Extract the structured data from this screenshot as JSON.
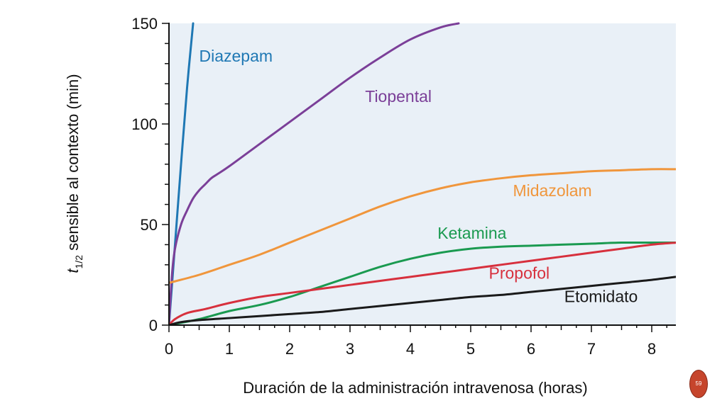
{
  "page": {
    "number": "59"
  },
  "chart_data": {
    "type": "line",
    "title": "",
    "xlabel": "Duración de la administración intravenosa (horas)",
    "ylabel_main": "t",
    "ylabel_sub": "1/2",
    "ylabel_rest": " sensible al contexto (min)",
    "xlim": [
      0,
      8.4
    ],
    "ylim": [
      0,
      150
    ],
    "xticks": [
      "0",
      "1",
      "2",
      "3",
      "4",
      "5",
      "6",
      "7",
      "8"
    ],
    "yticks": [
      "0",
      "50",
      "100",
      "150"
    ],
    "grid": false,
    "plot_background": "#e9f0f7",
    "series": [
      {
        "name": "Diazepam",
        "color": "#1f78b4",
        "x": [
          0,
          0.1,
          0.2,
          0.3,
          0.4
        ],
        "y": [
          0,
          40,
          80,
          118,
          150
        ]
      },
      {
        "name": "Tiopental",
        "color": "#7b3f98",
        "x": [
          0,
          0.05,
          0.1,
          0.2,
          0.3,
          0.4,
          0.5,
          0.6,
          0.7,
          0.8,
          1,
          1.5,
          2,
          2.5,
          3,
          3.5,
          4,
          4.5,
          4.8
        ],
        "y": [
          0,
          25,
          38,
          50,
          57,
          63,
          67,
          70,
          73,
          75,
          79,
          90,
          101,
          112,
          123,
          133,
          142,
          148,
          150
        ]
      },
      {
        "name": "Midazolam",
        "color": "#f0963c",
        "x": [
          0,
          0.5,
          1,
          1.5,
          2,
          2.5,
          3,
          3.5,
          4,
          4.5,
          5,
          5.5,
          6,
          6.5,
          7,
          7.5,
          8,
          8.4
        ],
        "y": [
          21,
          25,
          30,
          35,
          41,
          47,
          53,
          59,
          64,
          68,
          71,
          73,
          74.5,
          75.5,
          76.5,
          77,
          77.5,
          77.5
        ]
      },
      {
        "name": "Ketamina",
        "color": "#1a9a50",
        "x": [
          0,
          0.5,
          1,
          1.5,
          2,
          2.5,
          3,
          3.5,
          4,
          4.5,
          5,
          5.5,
          6,
          6.5,
          7,
          7.5,
          8,
          8.4
        ],
        "y": [
          0,
          3,
          7,
          10,
          14,
          19,
          24,
          29,
          33,
          36,
          38,
          39,
          39.5,
          40,
          40.5,
          41,
          41,
          41
        ]
      },
      {
        "name": "Propofol",
        "color": "#d7303d",
        "x": [
          0,
          0.1,
          0.3,
          0.6,
          1,
          1.5,
          2,
          2.5,
          3,
          3.5,
          4,
          4.5,
          5,
          5.5,
          6,
          6.5,
          7,
          7.5,
          8,
          8.4
        ],
        "y": [
          0,
          3,
          6,
          8,
          11,
          14,
          16,
          18,
          20,
          22,
          24,
          26,
          28,
          30,
          32,
          34,
          36,
          38,
          40,
          41
        ]
      },
      {
        "name": "Etomidato",
        "color": "#1a1a1a",
        "x": [
          0,
          0.2,
          0.5,
          1,
          1.5,
          2,
          2.5,
          3,
          3.5,
          4,
          4.5,
          5,
          5.5,
          6,
          6.5,
          7,
          7.5,
          8,
          8.4
        ],
        "y": [
          0,
          1.5,
          2.5,
          3.5,
          4.5,
          5.5,
          6.5,
          8,
          9.5,
          11,
          12.5,
          14,
          15,
          16.5,
          18,
          19.5,
          21,
          22.5,
          24
        ]
      }
    ],
    "annotations": [
      {
        "series": "Diazepam",
        "text": "Diazepam",
        "x": 0.5,
        "y": 131
      },
      {
        "series": "Tiopental",
        "text": "Tiopental",
        "x": 3.25,
        "y": 111
      },
      {
        "series": "Midazolam",
        "text": "Midazolam",
        "x": 5.7,
        "y": 64
      },
      {
        "series": "Ketamina",
        "text": "Ketamina",
        "x": 4.45,
        "y": 43
      },
      {
        "series": "Propofol",
        "text": "Propofol",
        "x": 5.3,
        "y": 23
      },
      {
        "series": "Etomidato",
        "text": "Etomidato",
        "x": 6.55,
        "y": 11.5
      }
    ]
  }
}
